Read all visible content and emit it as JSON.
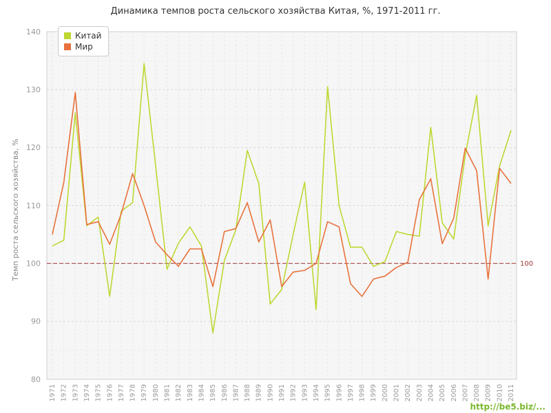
{
  "watermark": {
    "text": "http://be5.biz/..."
  },
  "chart_data": {
    "type": "line",
    "title": "Динамика темпов роста сельского хозяйства Китая, %, 1971-2011 гг.",
    "xlabel": "",
    "ylabel": "Темп роста сельского хозяйства, %",
    "ylim": [
      80,
      140
    ],
    "yticks": [
      80,
      90,
      100,
      110,
      120,
      130,
      140
    ],
    "grid": true,
    "legend_position": "top-left",
    "x": [
      1971,
      1972,
      1973,
      1974,
      1975,
      1976,
      1977,
      1978,
      1979,
      1980,
      1981,
      1982,
      1983,
      1984,
      1985,
      1986,
      1987,
      1988,
      1989,
      1990,
      1991,
      1992,
      1993,
      1994,
      1995,
      1996,
      1997,
      1998,
      1999,
      2000,
      2001,
      2002,
      2003,
      2004,
      2005,
      2006,
      2007,
      2008,
      2009,
      2010,
      2011
    ],
    "series": [
      {
        "name": "Китай",
        "color": "#bfd732",
        "values": [
          103,
          104,
          126,
          106.5,
          108,
          94.3,
          109,
          110.5,
          134.5,
          117,
          99,
          103.5,
          106.3,
          103,
          88,
          100.5,
          105.8,
          119.5,
          113.8,
          93,
          95.5,
          105,
          114,
          92,
          130.5,
          110,
          102.8,
          102.8,
          99.5,
          100.3,
          105.5,
          105,
          104.7,
          123.5,
          107,
          104.2,
          118.6,
          129,
          106.5,
          116.8,
          123
        ]
      },
      {
        "name": "Мир",
        "color": "#e8713c",
        "values": [
          105,
          114,
          129.5,
          106.7,
          107.2,
          103.3,
          108.5,
          115.5,
          110,
          103.7,
          101.5,
          99.5,
          102.5,
          102.5,
          96,
          105.5,
          106,
          110.5,
          103.7,
          107.5,
          96,
          98.5,
          98.8,
          100,
          107.2,
          106.3,
          96.5,
          94.3,
          97.3,
          97.8,
          99.3,
          100.2,
          111,
          114.6,
          103.4,
          107.8,
          119.9,
          116,
          97.3,
          116.4,
          113.8
        ]
      }
    ],
    "reference_line": {
      "value": 100,
      "label": "100",
      "color": "#a03a3a"
    }
  }
}
